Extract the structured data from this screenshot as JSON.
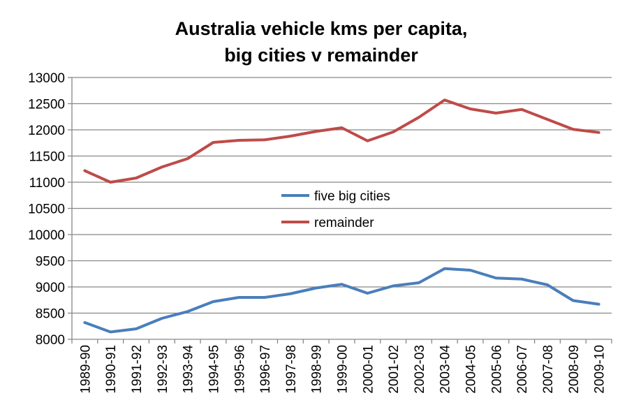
{
  "chart_data": {
    "type": "line",
    "title": [
      "Australia vehicle kms per capita,",
      "big cities v remainder"
    ],
    "xlabel": "",
    "ylabel": "",
    "ylim": [
      8000,
      13000
    ],
    "yticks": [
      8000,
      8500,
      9000,
      9500,
      10000,
      10500,
      11000,
      11500,
      12000,
      12500,
      13000
    ],
    "grid": true,
    "legend_position": "center",
    "categories": [
      "1989-90",
      "1990-91",
      "1991-92",
      "1992-93",
      "1993-94",
      "1994-95",
      "1995-96",
      "1996-97",
      "1997-98",
      "1998-99",
      "1999-00",
      "2000-01",
      "2001-02",
      "2002-03",
      "2003-04",
      "2004-05",
      "2005-06",
      "2006-07",
      "2007-08",
      "2008-09",
      "2009-10"
    ],
    "series": [
      {
        "name": "five big cities",
        "color": "#4a7ebb",
        "values": [
          8320,
          8140,
          8200,
          8400,
          8530,
          8720,
          8800,
          8800,
          8870,
          8980,
          9050,
          8880,
          9020,
          9080,
          9350,
          9320,
          9170,
          9150,
          9040,
          8740,
          8670
        ]
      },
      {
        "name": "remainder",
        "color": "#be4b48",
        "values": [
          11220,
          11000,
          11080,
          11290,
          11450,
          11760,
          11800,
          11810,
          11880,
          11970,
          12040,
          11790,
          11960,
          12240,
          12570,
          12400,
          12320,
          12390,
          12200,
          12010,
          11950
        ]
      }
    ]
  }
}
